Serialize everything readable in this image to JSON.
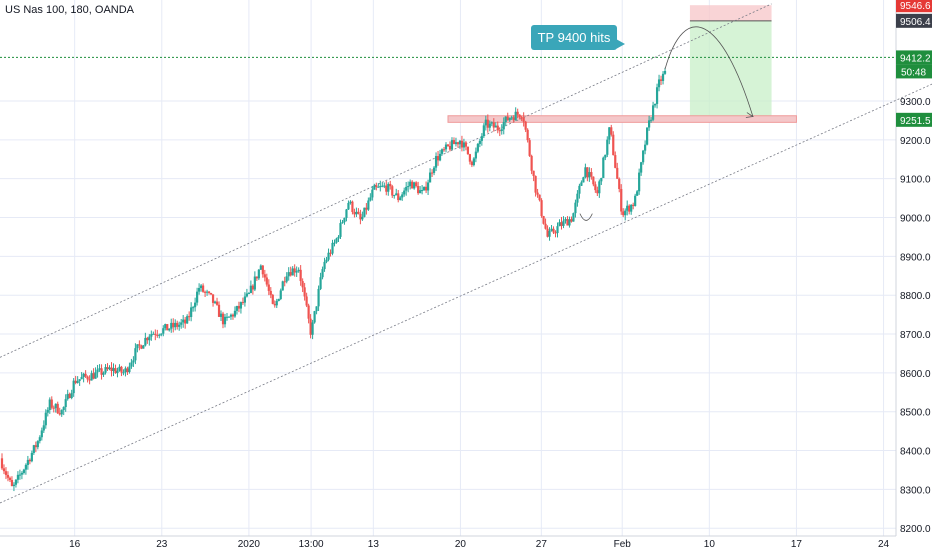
{
  "header": {
    "symbol_label": "US Nas 100, 180, OANDA"
  },
  "annotation": {
    "label": "TP 9400 hits"
  },
  "colors": {
    "up": "#26a69a",
    "down": "#ef5350",
    "grid": "#e6eaf6",
    "channel": "#787b86",
    "target_zone": "#c8efc8",
    "stop_zone": "#f7c9cc",
    "resistance_zone": "#f4c7c9",
    "price_tag": "#1f8e3d",
    "stop_tag": "#e53935"
  },
  "chart_data": {
    "type": "candlestick",
    "title": "US Nas 100, 180, OANDA",
    "ylim": [
      8180,
      9560
    ],
    "xlim": [
      0,
      72
    ],
    "yticks": [
      8200,
      8300,
      8400,
      8500,
      8600,
      8700,
      8800,
      8900,
      9000,
      9100,
      9200,
      9300
    ],
    "ytick_labels": [
      "8200.0",
      "8300.0",
      "8400.0",
      "8500.0",
      "8600.0",
      "8700.0",
      "8800.0",
      "8900.0",
      "9000.0",
      "9100.0",
      "9200.0",
      "9300.0"
    ],
    "xticks": [
      {
        "t": 6,
        "label": "16"
      },
      {
        "t": 13,
        "label": "23"
      },
      {
        "t": 20,
        "label": "2020"
      },
      {
        "t": 25,
        "label": "13:00"
      },
      {
        "t": 30,
        "label": "13"
      },
      {
        "t": 37,
        "label": "20"
      },
      {
        "t": 43.5,
        "label": "27"
      },
      {
        "t": 50,
        "label": "Feb"
      },
      {
        "t": 57,
        "label": "10"
      },
      {
        "t": 64,
        "label": "17"
      },
      {
        "t": 71,
        "label": "24"
      }
    ],
    "price_path": [
      [
        0,
        8380
      ],
      [
        1,
        8300
      ],
      [
        2,
        8360
      ],
      [
        3,
        8420
      ],
      [
        4,
        8520
      ],
      [
        5,
        8500
      ],
      [
        6,
        8580
      ],
      [
        7,
        8590
      ],
      [
        8,
        8600
      ],
      [
        9,
        8610
      ],
      [
        10,
        8600
      ],
      [
        11,
        8660
      ],
      [
        12,
        8700
      ],
      [
        13,
        8710
      ],
      [
        14,
        8720
      ],
      [
        15,
        8730
      ],
      [
        16,
        8820
      ],
      [
        17,
        8790
      ],
      [
        18,
        8730
      ],
      [
        19,
        8760
      ],
      [
        20,
        8800
      ],
      [
        21,
        8880
      ],
      [
        22,
        8760
      ],
      [
        23,
        8860
      ],
      [
        24,
        8870
      ],
      [
        25,
        8700
      ],
      [
        26,
        8880
      ],
      [
        27,
        8940
      ],
      [
        28,
        9040
      ],
      [
        29,
        8990
      ],
      [
        30,
        9070
      ],
      [
        31,
        9080
      ],
      [
        32,
        9050
      ],
      [
        33,
        9090
      ],
      [
        34,
        9060
      ],
      [
        35,
        9150
      ],
      [
        36,
        9180
      ],
      [
        37,
        9200
      ],
      [
        38,
        9140
      ],
      [
        39,
        9240
      ],
      [
        40,
        9230
      ],
      [
        41,
        9260
      ],
      [
        42,
        9270
      ],
      [
        43,
        9080
      ],
      [
        44,
        8950
      ],
      [
        45,
        8980
      ],
      [
        46,
        9000
      ],
      [
        47,
        9130
      ],
      [
        48,
        9060
      ],
      [
        49,
        9230
      ],
      [
        50,
        9010
      ],
      [
        51,
        9040
      ],
      [
        52,
        9220
      ],
      [
        53,
        9350
      ],
      [
        53.5,
        9375
      ]
    ],
    "channel_upper": [
      [
        0,
        8640
      ],
      [
        62,
        9550
      ]
    ],
    "channel_lower": [
      [
        0,
        8265
      ],
      [
        75,
        9345
      ]
    ],
    "resistance_zone": [
      9245,
      9262
    ],
    "target_zone": [
      9251.5,
      9506.4
    ],
    "stop_zone": [
      9506.4,
      9546.6
    ],
    "current_price": 9412.2,
    "countdown": "50:48",
    "price_tags": [
      {
        "value": 9546.6,
        "label": "9546.6",
        "style": "stop"
      },
      {
        "value": 9506.4,
        "label": "9506.4",
        "style": "dark"
      },
      {
        "value": 9412.2,
        "label": "9412.2",
        "style": "price"
      },
      {
        "value": 9251.5,
        "label": "9251.5",
        "style": "price"
      }
    ]
  }
}
